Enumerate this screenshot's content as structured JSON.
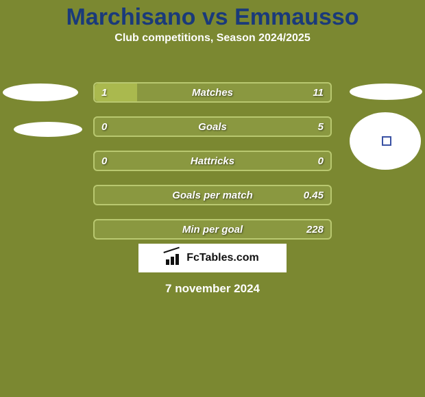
{
  "background_color": "#7b8831",
  "title": {
    "text": "Marchisano vs Emmausso",
    "color": "#1a3a7a",
    "fontsize": 34
  },
  "subtitle": {
    "text": "Club competitions, Season 2024/2025",
    "color": "#ffffff",
    "fontsize": 16
  },
  "bar_style": {
    "track_border_color": "#b9c870",
    "fill_left_color": "#aab94e",
    "fill_right_color": "#aab94e",
    "track_bg_color": "#8a9840",
    "height": 26,
    "radius": 6,
    "label_color": "#ffffff",
    "label_fontsize": 15
  },
  "stats": [
    {
      "label": "Matches",
      "left_value": "1",
      "right_value": "11",
      "left_pct": 18,
      "right_pct": 0
    },
    {
      "label": "Goals",
      "left_value": "0",
      "right_value": "5",
      "left_pct": 0,
      "right_pct": 0
    },
    {
      "label": "Hattricks",
      "left_value": "0",
      "right_value": "0",
      "left_pct": 0,
      "right_pct": 0
    },
    {
      "label": "Goals per match",
      "left_value": "",
      "right_value": "0.45",
      "left_pct": 0,
      "right_pct": 0
    },
    {
      "label": "Min per goal",
      "left_value": "",
      "right_value": "228",
      "left_pct": 0,
      "right_pct": 0
    }
  ],
  "brand": "FcTables.com",
  "date": {
    "text": "7 november 2024",
    "color": "#ffffff",
    "fontsize": 17
  }
}
